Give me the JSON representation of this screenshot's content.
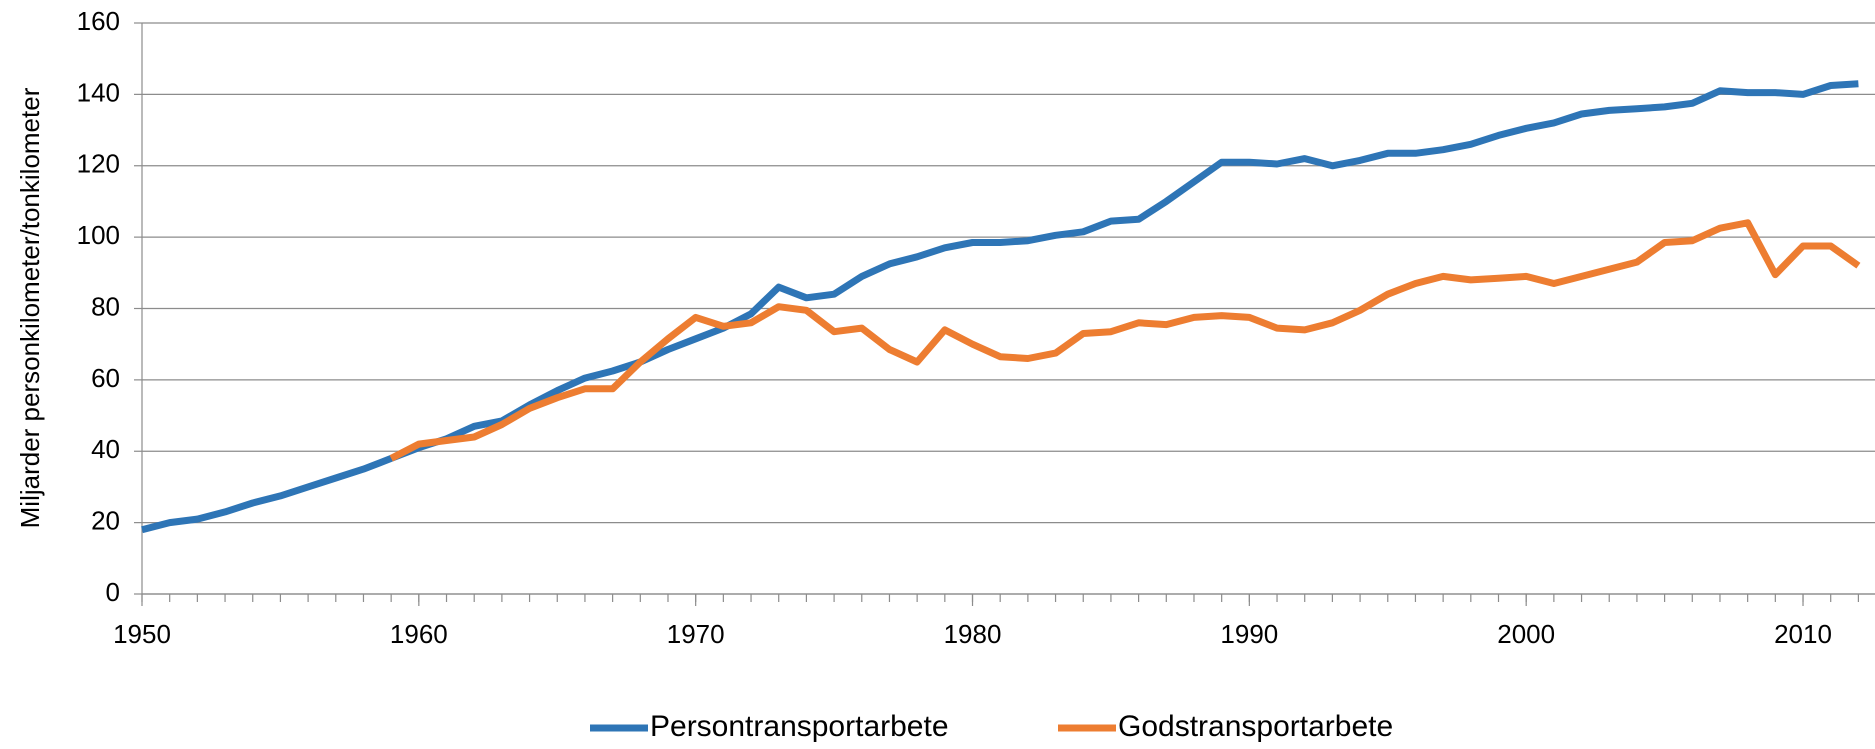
{
  "chart_data": {
    "type": "line",
    "y_label": "Miljarder personkilometer/tonkilometer",
    "x": [
      1950,
      1951,
      1952,
      1953,
      1954,
      1955,
      1956,
      1957,
      1958,
      1959,
      1960,
      1961,
      1962,
      1963,
      1964,
      1965,
      1966,
      1967,
      1968,
      1969,
      1970,
      1971,
      1972,
      1973,
      1974,
      1975,
      1976,
      1977,
      1978,
      1979,
      1980,
      1981,
      1982,
      1983,
      1984,
      1985,
      1986,
      1987,
      1988,
      1989,
      1990,
      1991,
      1992,
      1993,
      1994,
      1995,
      1996,
      1997,
      1998,
      1999,
      2000,
      2001,
      2002,
      2003,
      2004,
      2005,
      2006,
      2007,
      2008,
      2009,
      2010,
      2011,
      2012
    ],
    "series": [
      {
        "name": "Persontransportarbete",
        "color": "#2e75b6",
        "values": [
          18,
          20,
          21,
          23,
          25.5,
          27.5,
          30,
          32.5,
          35,
          38,
          41,
          43.5,
          47,
          48.5,
          53,
          57,
          60.5,
          62.5,
          65,
          68.5,
          71.5,
          74.5,
          78.5,
          86,
          83,
          84,
          89,
          92.5,
          94.5,
          97,
          98.5,
          98.5,
          99,
          100.5,
          101.5,
          104.5,
          105,
          110,
          115.5,
          121,
          121,
          120.5,
          122,
          120,
          121.5,
          123.5,
          123.5,
          124.5,
          126,
          128.5,
          130.5,
          132,
          134.5,
          135.5,
          136,
          136.5,
          137.5,
          141,
          140.5,
          140.5,
          140,
          142.5,
          143
        ]
      },
      {
        "name": "Godstransportarbete",
        "color": "#ed7d31",
        "values": [
          null,
          null,
          null,
          null,
          null,
          null,
          null,
          null,
          null,
          38,
          42,
          43,
          44,
          47.5,
          52,
          55,
          57.5,
          57.5,
          65,
          71.5,
          77.5,
          75,
          76,
          80.5,
          79.5,
          73.5,
          74.5,
          68.5,
          65,
          74,
          70,
          66.5,
          66,
          67.5,
          73,
          73.5,
          76,
          75.5,
          77.5,
          78,
          77.5,
          74.5,
          74,
          76,
          79.5,
          84,
          87,
          89,
          88,
          88.5,
          89,
          87,
          89,
          91,
          93,
          98.5,
          99,
          102.5,
          104,
          89.5,
          97.5,
          97.5,
          92
        ]
      }
    ],
    "xlim": [
      1950,
      2012.6
    ],
    "xticks": [
      1950,
      1960,
      1970,
      1980,
      1990,
      2000,
      2010
    ],
    "ylim": [
      0,
      160
    ],
    "yticks": [
      0,
      20,
      40,
      60,
      80,
      100,
      120,
      140,
      160
    ],
    "grid": true,
    "legend": "bottom"
  }
}
